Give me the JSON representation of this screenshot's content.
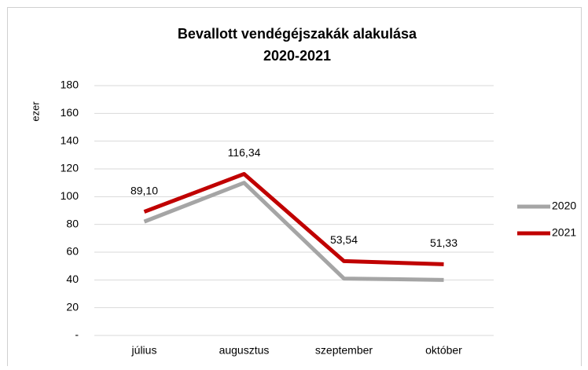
{
  "chart_data": {
    "type": "line",
    "title": "Bevallott vendégéjszakák alakulása",
    "subtitle": "2020-2021",
    "y_label": "ezer",
    "categories": [
      "július",
      "augusztus",
      "szeptember",
      "október"
    ],
    "series": [
      {
        "name": "2020",
        "color": "#a5a5a5",
        "values": [
          82,
          110,
          41,
          40
        ]
      },
      {
        "name": "2021",
        "color": "#c00000",
        "values": [
          89.1,
          116.34,
          53.54,
          51.33
        ],
        "value_labels": [
          "89,10",
          "116,34",
          "53,54",
          "51,33"
        ]
      }
    ],
    "ylim": [
      0,
      180
    ],
    "yticks": [
      {
        "value": 0,
        "label": "-"
      },
      20,
      40,
      60,
      80,
      100,
      120,
      140,
      160,
      180
    ],
    "grid": true,
    "legend": "right"
  }
}
